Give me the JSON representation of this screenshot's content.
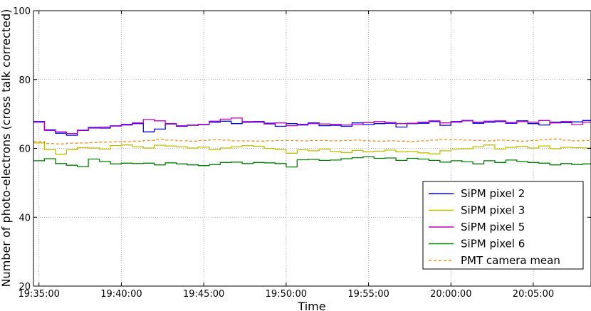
{
  "chart_data": {
    "type": "line",
    "title": "",
    "xlabel": "Time",
    "ylabel": "Number of photo-electrons (cross talk corrected)",
    "ylim": [
      20,
      100
    ],
    "xlim": [
      "19:34:40",
      "20:08:30"
    ],
    "yticks": [
      20,
      40,
      60,
      80,
      100
    ],
    "xticks": [
      "19:35:00",
      "19:40:00",
      "19:45:00",
      "19:50:00",
      "19:55:00",
      "20:00:00",
      "20:05:00"
    ],
    "grid": true,
    "legend_position": "lower-right",
    "step_interval": "00:00:40",
    "first_step": "19:34:40",
    "series": [
      {
        "name": "SiPM pixel 2",
        "color": "#0000ff",
        "values": [
          67.8,
          65.4,
          64.4,
          63.8,
          65.2,
          66.1,
          65.9,
          66.5,
          66.8,
          67.2,
          64.8,
          65.6,
          67.1,
          66.4,
          66.7,
          66.9,
          67.6,
          67.9,
          67.2,
          67.6,
          67.8,
          67.3,
          66.4,
          67.2,
          66.8,
          67.4,
          66.6,
          66.7,
          66.4,
          67.4,
          66.9,
          67.2,
          67.3,
          66.2,
          67.2,
          67.3,
          67.8,
          66.7,
          67.8,
          68.1,
          67.3,
          67.6,
          67.8,
          67.3,
          68.0,
          67.2,
          66.8,
          67.6,
          67.5,
          67.7,
          68.1
        ]
      },
      {
        "name": "SiPM pixel 3",
        "color": "#bfbf00",
        "values": [
          61.6,
          59.6,
          58.3,
          59.6,
          60.2,
          60.1,
          59.8,
          60.8,
          61.0,
          60.5,
          60.1,
          60.9,
          60.7,
          60.5,
          60.1,
          60.4,
          59.6,
          60.1,
          60.5,
          60.8,
          60.6,
          60.0,
          59.7,
          58.6,
          59.6,
          59.3,
          59.8,
          59.1,
          58.8,
          59.4,
          59.0,
          59.2,
          59.5,
          59.0,
          59.1,
          58.7,
          58.4,
          59.3,
          59.8,
          59.9,
          60.5,
          61.0,
          59.8,
          60.3,
          60.6,
          60.1,
          60.7,
          59.9,
          60.3,
          60.2,
          60.1
        ]
      },
      {
        "name": "SiPM pixel 5",
        "color": "#bf00bf",
        "values": [
          67.6,
          65.2,
          64.8,
          64.3,
          65.3,
          65.9,
          66.2,
          66.6,
          67.0,
          67.4,
          68.4,
          68.0,
          67.2,
          66.6,
          66.8,
          67.0,
          67.9,
          68.5,
          68.8,
          67.8,
          67.6,
          67.1,
          67.4,
          66.6,
          67.0,
          67.2,
          67.1,
          67.0,
          66.8,
          66.9,
          67.5,
          67.8,
          67.5,
          67.2,
          67.3,
          67.6,
          68.0,
          67.4,
          67.6,
          68.0,
          67.6,
          67.9,
          68.0,
          67.5,
          67.8,
          67.6,
          68.1,
          67.4,
          67.8,
          66.9,
          67.6
        ]
      },
      {
        "name": "SiPM pixel 6",
        "color": "#008000",
        "values": [
          56.4,
          57.0,
          55.6,
          55.1,
          54.7,
          56.9,
          56.2,
          55.5,
          55.7,
          55.6,
          55.7,
          55.2,
          55.8,
          55.5,
          55.2,
          55.0,
          55.3,
          55.9,
          56.0,
          55.6,
          55.9,
          55.8,
          55.6,
          54.6,
          56.7,
          56.8,
          56.5,
          56.6,
          57.0,
          57.3,
          57.6,
          57.1,
          57.2,
          56.5,
          57.1,
          56.9,
          56.5,
          56.0,
          56.4,
          56.1,
          55.5,
          56.4,
          55.9,
          56.6,
          56.2,
          55.9,
          55.7,
          55.2,
          55.6,
          55.3,
          55.5
        ]
      },
      {
        "name": "PMT camera mean",
        "color": "#ff8c1a",
        "dashed": true,
        "values": [
          62.0,
          61.4,
          61.3,
          61.5,
          61.6,
          61.7,
          61.8,
          61.9,
          62.0,
          62.1,
          62.3,
          62.6,
          62.4,
          62.2,
          62.1,
          62.3,
          62.5,
          62.4,
          62.2,
          62.2,
          62.1,
          62.2,
          62.3,
          62.3,
          62.2,
          62.3,
          62.3,
          62.2,
          62.3,
          62.4,
          62.2,
          62.1,
          62.2,
          62.1,
          62.0,
          62.2,
          62.4,
          62.6,
          62.5,
          62.4,
          62.3,
          62.2,
          62.4,
          62.3,
          62.1,
          62.3,
          62.5,
          62.7,
          62.4,
          62.2,
          62.3
        ]
      }
    ]
  }
}
